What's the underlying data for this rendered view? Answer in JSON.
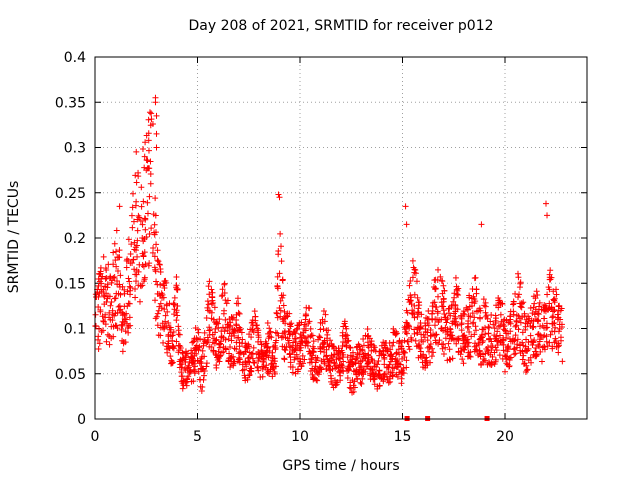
{
  "chart_data": {
    "type": "scatter",
    "title": "Day 208 of 2021, SRMTID for receiver p012",
    "xlabel": "GPS time / hours",
    "ylabel": "SRMTID / TECUs",
    "xlim": [
      0,
      24
    ],
    "ylim": [
      0,
      0.4
    ],
    "xticks": [
      0,
      5,
      10,
      15,
      20
    ],
    "yticks": [
      0,
      0.05,
      0.1,
      0.15,
      0.2,
      0.25,
      0.3,
      0.35,
      0.4
    ],
    "xtick_labels": [
      "0",
      "5",
      "10",
      "15",
      "20"
    ],
    "ytick_labels": [
      "0",
      "0.05",
      "0.1",
      "0.15",
      "0.2",
      "0.25",
      "0.3",
      "0.35",
      "0.4"
    ],
    "grid": true,
    "marker": "+",
    "color": "#ff0000",
    "zero_markers_x": [
      15.2,
      16.2,
      19.1
    ],
    "series": [
      {
        "name": "SRMTID",
        "x": [
          0.0,
          0.2,
          0.4,
          0.6,
          0.8,
          1.0,
          1.2,
          1.4,
          1.6,
          1.8,
          2.0,
          2.2,
          2.4,
          2.6,
          2.8,
          3.0,
          3.2,
          3.4,
          3.6,
          3.8,
          4.0,
          4.2,
          4.4,
          4.6,
          4.8,
          5.0,
          5.2,
          5.4,
          5.6,
          5.8,
          6.0,
          6.2,
          6.4,
          6.6,
          6.8,
          7.0,
          7.2,
          7.4,
          7.6,
          7.8,
          8.0,
          8.2,
          8.4,
          8.6,
          8.8,
          9.0,
          9.2,
          9.4,
          9.6,
          9.8,
          10.0,
          10.2,
          10.4,
          10.6,
          10.8,
          11.0,
          11.2,
          11.4,
          11.6,
          11.8,
          12.0,
          12.2,
          12.4,
          12.6,
          12.8,
          13.0,
          13.2,
          13.4,
          13.6,
          13.8,
          14.0,
          14.2,
          14.4,
          14.6,
          14.8,
          15.0,
          15.2,
          15.4,
          15.6,
          15.8,
          16.0,
          16.2,
          16.4,
          16.6,
          16.8,
          17.0,
          17.2,
          17.4,
          17.6,
          17.8,
          18.0,
          18.2,
          18.4,
          18.6,
          18.8,
          19.0,
          19.2,
          19.4,
          19.6,
          19.8,
          20.0,
          20.2,
          20.4,
          20.6,
          20.8,
          21.0,
          21.2,
          21.4,
          21.6,
          21.8,
          22.0,
          22.2,
          22.4,
          22.6,
          22.8
        ],
        "y": [
          0.1,
          0.12,
          0.14,
          0.13,
          0.12,
          0.16,
          0.15,
          0.1,
          0.14,
          0.17,
          0.22,
          0.2,
          0.24,
          0.25,
          0.27,
          0.15,
          0.13,
          0.12,
          0.1,
          0.09,
          0.12,
          0.06,
          0.05,
          0.07,
          0.06,
          0.09,
          0.05,
          0.08,
          0.12,
          0.1,
          0.08,
          0.11,
          0.12,
          0.08,
          0.09,
          0.1,
          0.07,
          0.06,
          0.08,
          0.09,
          0.07,
          0.06,
          0.08,
          0.07,
          0.06,
          0.17,
          0.1,
          0.09,
          0.08,
          0.07,
          0.09,
          0.08,
          0.1,
          0.07,
          0.06,
          0.08,
          0.09,
          0.07,
          0.06,
          0.05,
          0.07,
          0.08,
          0.06,
          0.05,
          0.07,
          0.06,
          0.08,
          0.07,
          0.06,
          0.05,
          0.06,
          0.07,
          0.06,
          0.08,
          0.07,
          0.06,
          0.09,
          0.12,
          0.14,
          0.1,
          0.08,
          0.09,
          0.1,
          0.12,
          0.13,
          0.11,
          0.09,
          0.1,
          0.12,
          0.1,
          0.09,
          0.1,
          0.11,
          0.12,
          0.09,
          0.1,
          0.08,
          0.09,
          0.1,
          0.11,
          0.08,
          0.09,
          0.1,
          0.12,
          0.11,
          0.08,
          0.09,
          0.1,
          0.11,
          0.09,
          0.1,
          0.13,
          0.11,
          0.1,
          0.09
        ],
        "spikes": [
          [
            2.95,
            0.355
          ],
          [
            2.95,
            0.35
          ],
          [
            3.0,
            0.335
          ],
          [
            3.0,
            0.315
          ],
          [
            3.0,
            0.3
          ],
          [
            8.95,
            0.248
          ],
          [
            9.0,
            0.245
          ],
          [
            15.15,
            0.235
          ],
          [
            15.2,
            0.215
          ],
          [
            18.85,
            0.215
          ],
          [
            22.0,
            0.238
          ],
          [
            22.05,
            0.225
          ],
          [
            2.1,
            0.272
          ],
          [
            2.5,
            0.275
          ],
          [
            1.2,
            0.235
          ]
        ]
      }
    ]
  }
}
